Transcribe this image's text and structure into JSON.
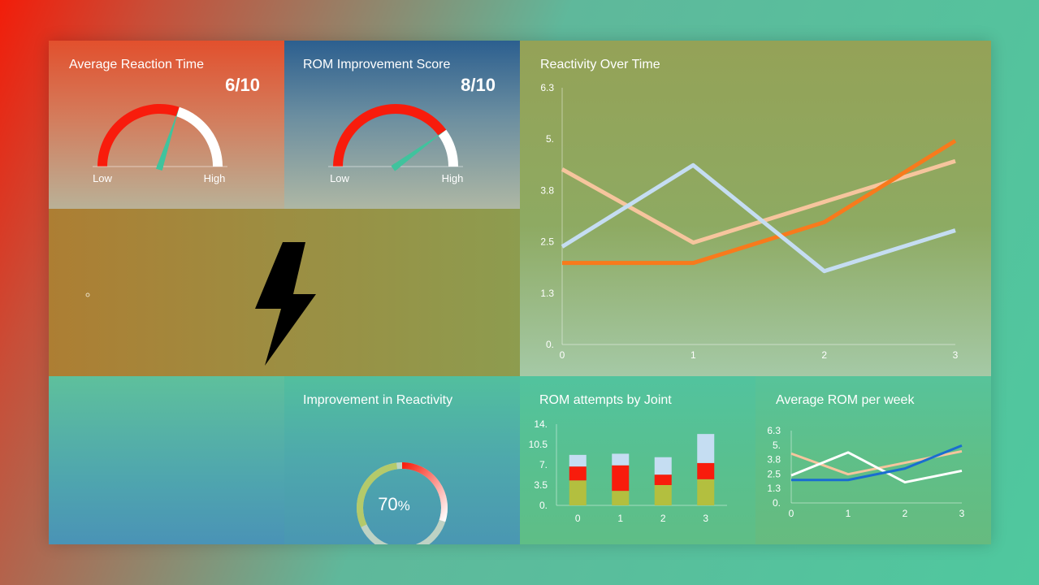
{
  "reaction_card": {
    "title": "Average Reaction Time",
    "score": "6/10",
    "low_label": "Low",
    "high_label": "High",
    "gauge_fraction": 0.6
  },
  "rom_card": {
    "title": "ROM Improvement Score",
    "score": "8/10",
    "low_label": "Low",
    "high_label": "High",
    "gauge_fraction": 0.8
  },
  "improvement_card": {
    "title": "Improvement in Reactivity",
    "value": "70",
    "unit": "%",
    "fraction": 0.7
  },
  "icons": {
    "hero": "lightning-bolt-icon",
    "bullet": "small-circle-icon"
  },
  "colors": {
    "gauge_fill": "#f81c0c",
    "gauge_empty": "#ffffff",
    "needle": "#40c39d",
    "series_peach": "#f6c59d",
    "series_orange": "#f87a1c",
    "series_lightblue": "#c5ddf2",
    "bar_green": "#b3bf3f",
    "bar_red": "#f81c0c",
    "bar_blue": "#c5ddf2",
    "week_blue": "#1a6dd0",
    "week_white": "#ffffff"
  },
  "chart_data": [
    {
      "type": "line",
      "title": "Reactivity Over Time",
      "x": [
        0,
        1,
        2,
        3
      ],
      "x_tick_labels": [
        "0",
        "1",
        "2",
        "3"
      ],
      "y_tick_labels": [
        "0.",
        "1.3",
        "2.5",
        "3.8",
        "5.",
        "6.3"
      ],
      "ylim": [
        0,
        6.3
      ],
      "grid": false,
      "legend": "none",
      "series": [
        {
          "values": [
            4.3,
            2.5,
            3.5,
            4.5
          ],
          "color": "#f6c59d"
        },
        {
          "values": [
            2.0,
            2.0,
            3.0,
            5.0
          ],
          "color": "#f87a1c"
        },
        {
          "values": [
            2.4,
            4.4,
            1.8,
            2.8
          ],
          "color": "#c5ddf2"
        }
      ]
    },
    {
      "type": "bar",
      "stacked": true,
      "title": "ROM attempts by Joint",
      "categories": [
        "0",
        "1",
        "2",
        "3"
      ],
      "y_tick_labels": [
        "0.",
        "3.5",
        "7.",
        "10.5",
        "14."
      ],
      "ylim": [
        0,
        14
      ],
      "grid": false,
      "legend": "none",
      "series": [
        {
          "values": [
            4.3,
            2.5,
            3.5,
            4.5
          ],
          "color": "#b3bf3f"
        },
        {
          "values": [
            2.4,
            4.4,
            1.8,
            2.8
          ],
          "color": "#f81c0c"
        },
        {
          "values": [
            2.0,
            2.0,
            3.0,
            5.0
          ],
          "color": "#c5ddf2"
        }
      ]
    },
    {
      "type": "line",
      "title": "Average ROM per week",
      "x": [
        0,
        1,
        2,
        3
      ],
      "x_tick_labels": [
        "0",
        "1",
        "2",
        "3"
      ],
      "y_tick_labels": [
        "0.",
        "1.3",
        "2.5",
        "3.8",
        "5.",
        "6.3"
      ],
      "ylim": [
        0,
        6.3
      ],
      "grid": false,
      "legend": "none",
      "series": [
        {
          "values": [
            4.3,
            2.5,
            3.5,
            4.5
          ],
          "color": "#f6c59d"
        },
        {
          "values": [
            2.4,
            4.4,
            1.8,
            2.8
          ],
          "color": "#ffffff"
        },
        {
          "values": [
            2.0,
            2.0,
            3.0,
            5.0
          ],
          "color": "#1a6dd0"
        }
      ]
    }
  ]
}
